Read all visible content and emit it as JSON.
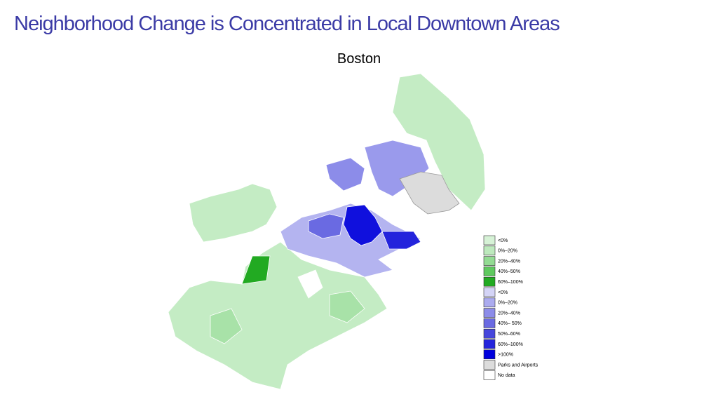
{
  "header": {
    "title": "Neighborhood Change is Concentrated in Local Downtown  Areas",
    "subtitle": "Boston"
  },
  "legend": {
    "items": [
      {
        "label": "<0%",
        "color": "#d6f2d6"
      },
      {
        "label": "0%–20%",
        "color": "#bde9bd"
      },
      {
        "label": "20%–40%",
        "color": "#93db93"
      },
      {
        "label": "40%–50%",
        "color": "#5fc95f"
      },
      {
        "label": "60%–100%",
        "color": "#22aa22"
      },
      {
        "label": "<0%",
        "color": "#d4d4f6"
      },
      {
        "label": "0%–20%",
        "color": "#ababef"
      },
      {
        "label": "20%–40%",
        "color": "#8c8ce9"
      },
      {
        "label": "40%– 50%",
        "color": "#6a6ae2"
      },
      {
        "label": "50%–60%",
        "color": "#4646dc"
      },
      {
        "label": "60%–100%",
        "color": "#2424dc"
      },
      {
        "label": ">100%",
        "color": "#0000dd"
      },
      {
        "label": "Parks and Airports",
        "color": "#dcdcdc"
      },
      {
        "label": "No data",
        "color": "#ffffff"
      }
    ]
  }
}
